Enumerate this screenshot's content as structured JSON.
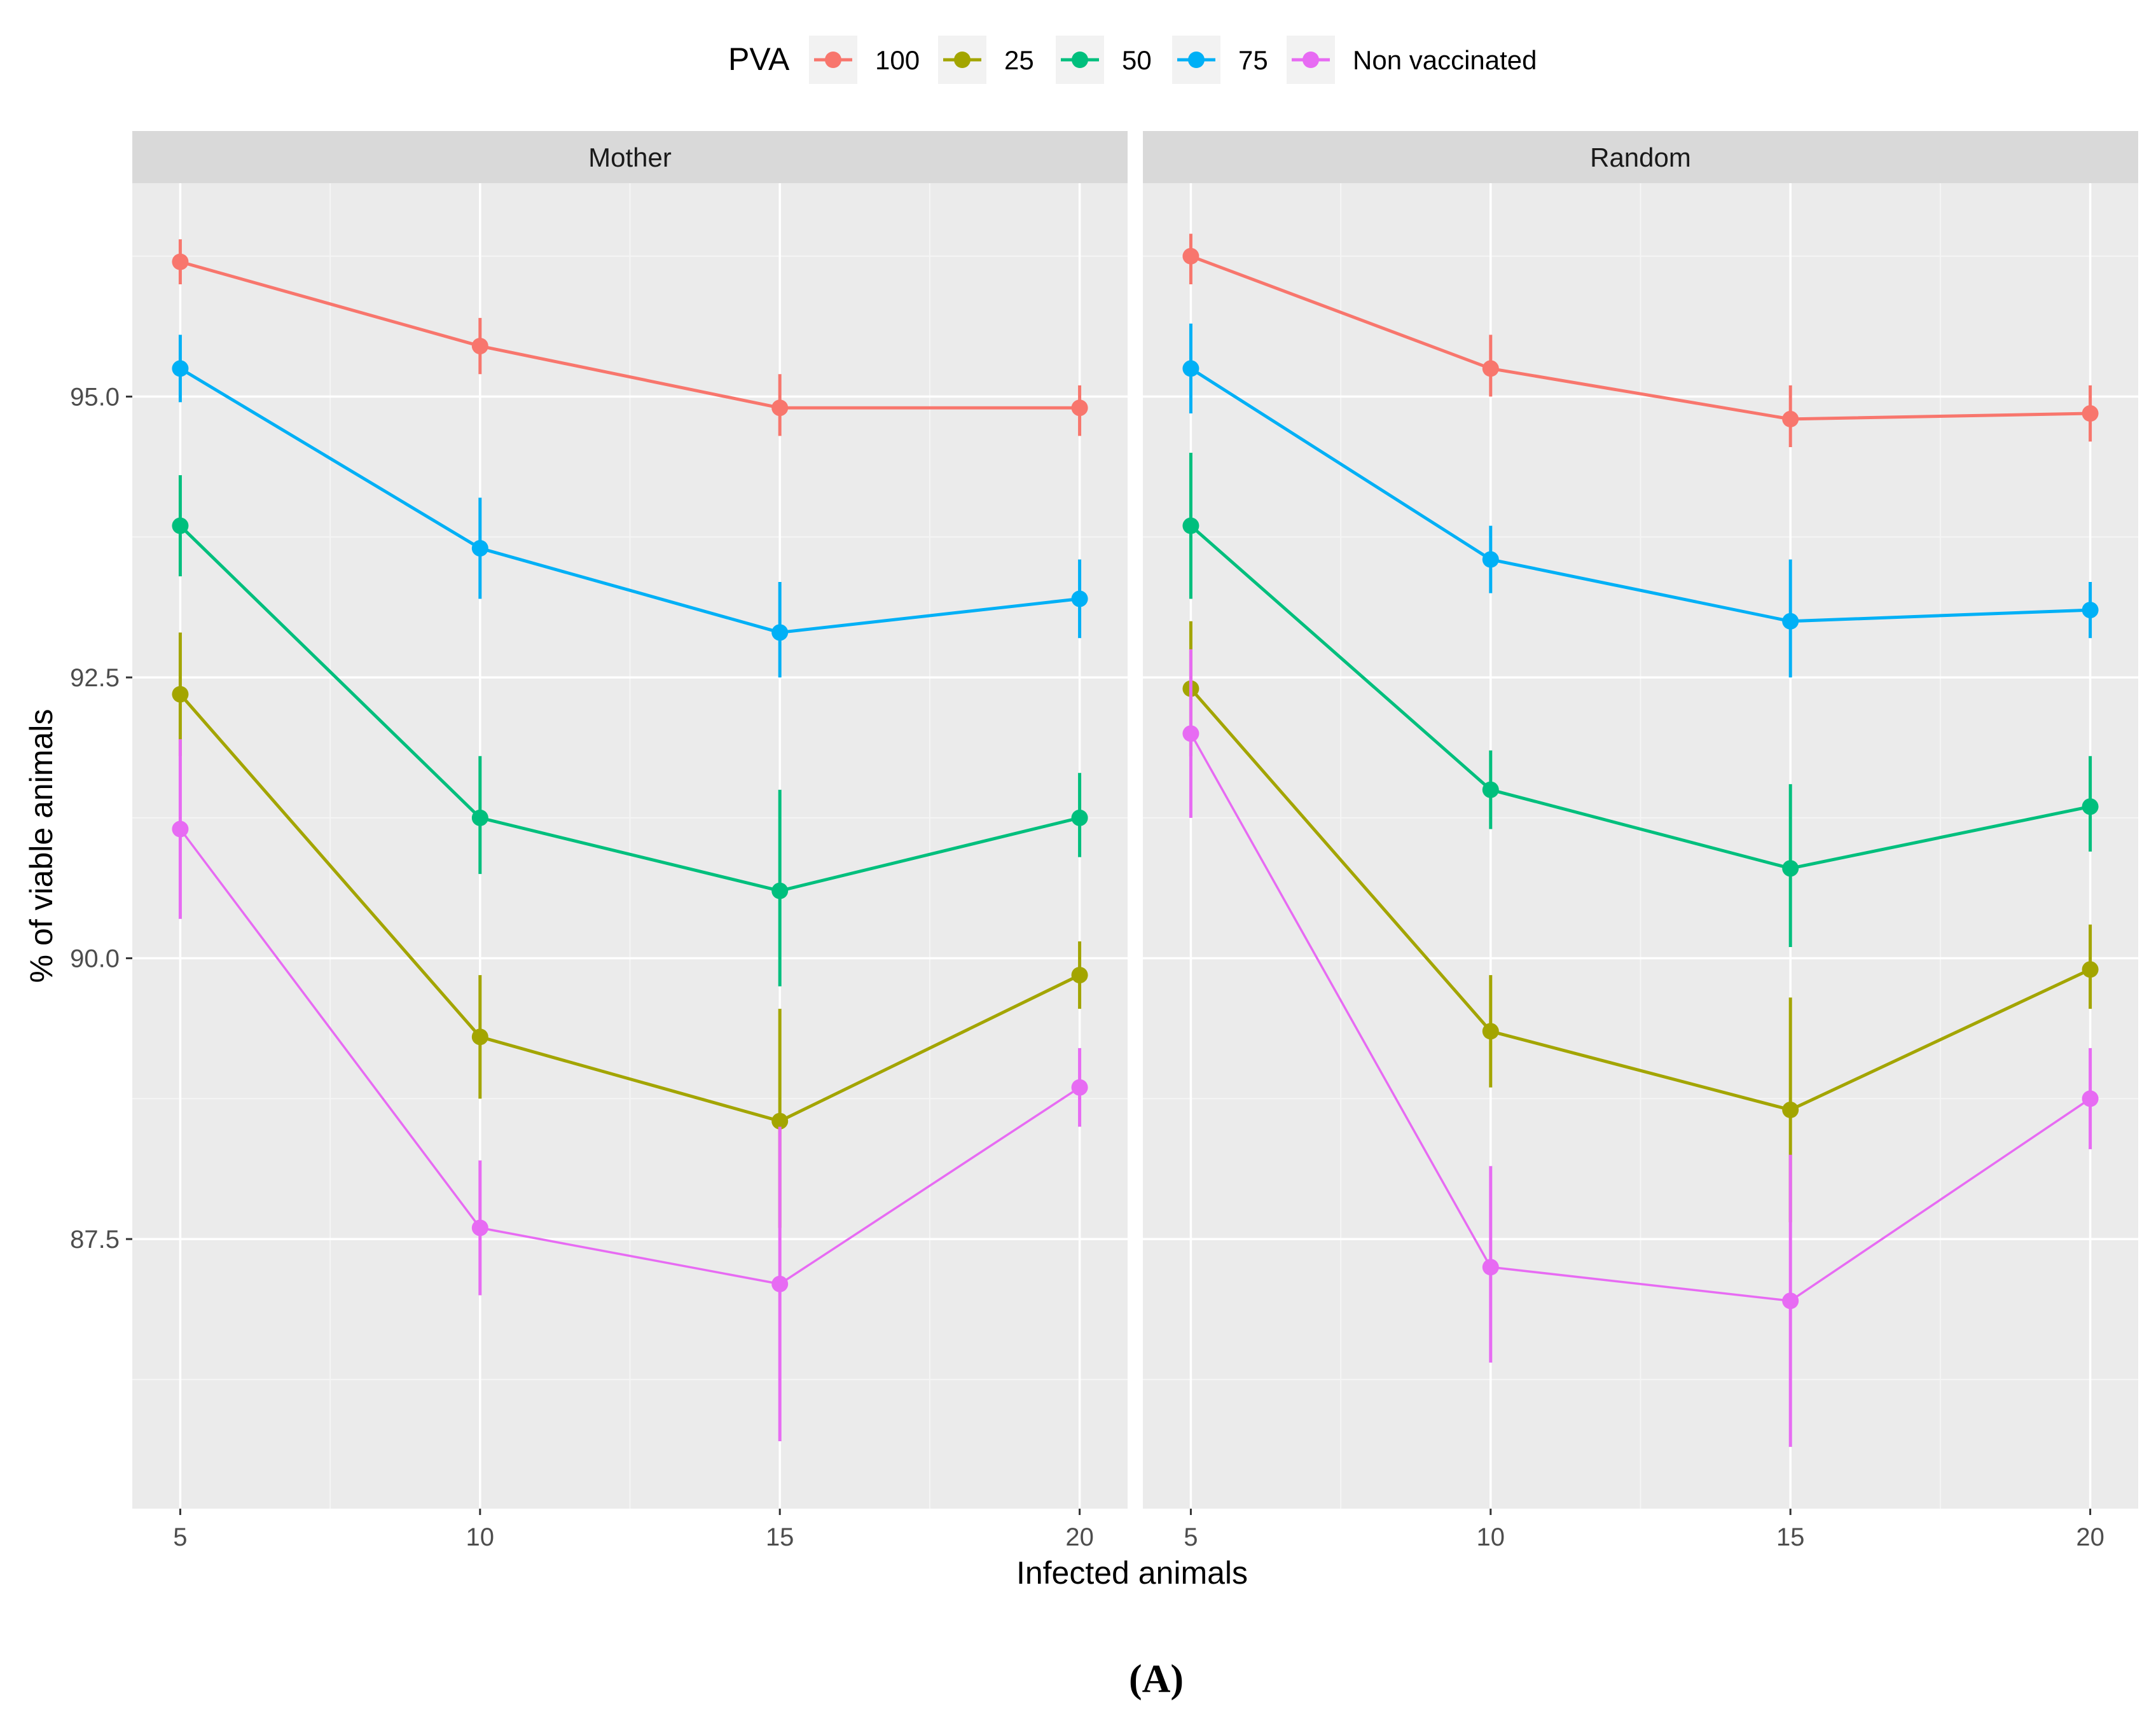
{
  "chart_data": {
    "type": "line",
    "xlabel": "Infected animals",
    "ylabel": "% of viable animals",
    "caption": "(A)",
    "legend": {
      "title": "PVA",
      "position": "top"
    },
    "x": [
      5,
      10,
      15,
      20
    ],
    "x_ticks": [
      "5",
      "10",
      "15",
      "20"
    ],
    "y_ticks": [
      "87.5",
      "90.0",
      "92.5",
      "95.0"
    ],
    "y_tick_values": [
      87.5,
      90.0,
      92.5,
      95.0
    ],
    "xlim": [
      4.2,
      20.8
    ],
    "ylim": [
      85.1,
      96.9
    ],
    "grid": true,
    "panels": [
      {
        "name": "Mother",
        "series": [
          {
            "name": "100",
            "color": "#F8766D",
            "values": [
              96.2,
              95.45,
              94.9,
              94.9
            ],
            "err_low": [
              96.0,
              95.2,
              94.65,
              94.65
            ],
            "err_high": [
              96.4,
              95.7,
              95.2,
              95.1
            ]
          },
          {
            "name": "25",
            "color": "#A3A500",
            "values": [
              92.35,
              89.3,
              88.55,
              89.85
            ],
            "err_low": [
              91.8,
              88.75,
              87.6,
              89.55
            ],
            "err_high": [
              92.9,
              89.85,
              89.55,
              90.15
            ]
          },
          {
            "name": "50",
            "color": "#00BF7D",
            "values": [
              93.85,
              91.25,
              90.6,
              91.25
            ],
            "err_low": [
              93.4,
              90.75,
              89.75,
              90.9
            ],
            "err_high": [
              94.3,
              91.8,
              91.5,
              91.65
            ]
          },
          {
            "name": "75",
            "color": "#00B0F6",
            "values": [
              95.25,
              93.65,
              92.9,
              93.2
            ],
            "err_low": [
              94.95,
              93.2,
              92.5,
              92.85
            ],
            "err_high": [
              95.55,
              94.1,
              93.35,
              93.55
            ]
          },
          {
            "name": "Non vaccinated",
            "color": "#E76BF3",
            "values": [
              91.15,
              87.6,
              87.1,
              88.85
            ],
            "err_low": [
              90.35,
              87.0,
              85.7,
              88.5
            ],
            "err_high": [
              91.95,
              88.2,
              88.5,
              89.2
            ]
          }
        ]
      },
      {
        "name": "Random",
        "series": [
          {
            "name": "100",
            "color": "#F8766D",
            "values": [
              96.25,
              95.25,
              94.8,
              94.85
            ],
            "err_low": [
              96.0,
              95.0,
              94.55,
              94.6
            ],
            "err_high": [
              96.45,
              95.55,
              95.1,
              95.1
            ]
          },
          {
            "name": "25",
            "color": "#A3A500",
            "values": [
              92.4,
              89.35,
              88.65,
              89.9
            ],
            "err_low": [
              91.8,
              88.85,
              87.65,
              89.55
            ],
            "err_high": [
              93.0,
              89.85,
              89.65,
              90.3
            ]
          },
          {
            "name": "50",
            "color": "#00BF7D",
            "values": [
              93.85,
              91.5,
              90.8,
              91.35
            ],
            "err_low": [
              93.2,
              91.15,
              90.1,
              90.95
            ],
            "err_high": [
              94.5,
              91.85,
              91.55,
              91.8
            ]
          },
          {
            "name": "75",
            "color": "#00B0F6",
            "values": [
              95.25,
              93.55,
              93.0,
              93.1
            ],
            "err_low": [
              94.85,
              93.25,
              92.5,
              92.85
            ],
            "err_high": [
              95.65,
              93.85,
              93.55,
              93.35
            ]
          },
          {
            "name": "Non vaccinated",
            "color": "#E76BF3",
            "values": [
              92.0,
              87.25,
              86.95,
              88.75
            ],
            "err_low": [
              91.25,
              86.4,
              85.65,
              88.3
            ],
            "err_high": [
              92.75,
              88.15,
              88.25,
              89.2
            ]
          }
        ]
      }
    ]
  }
}
